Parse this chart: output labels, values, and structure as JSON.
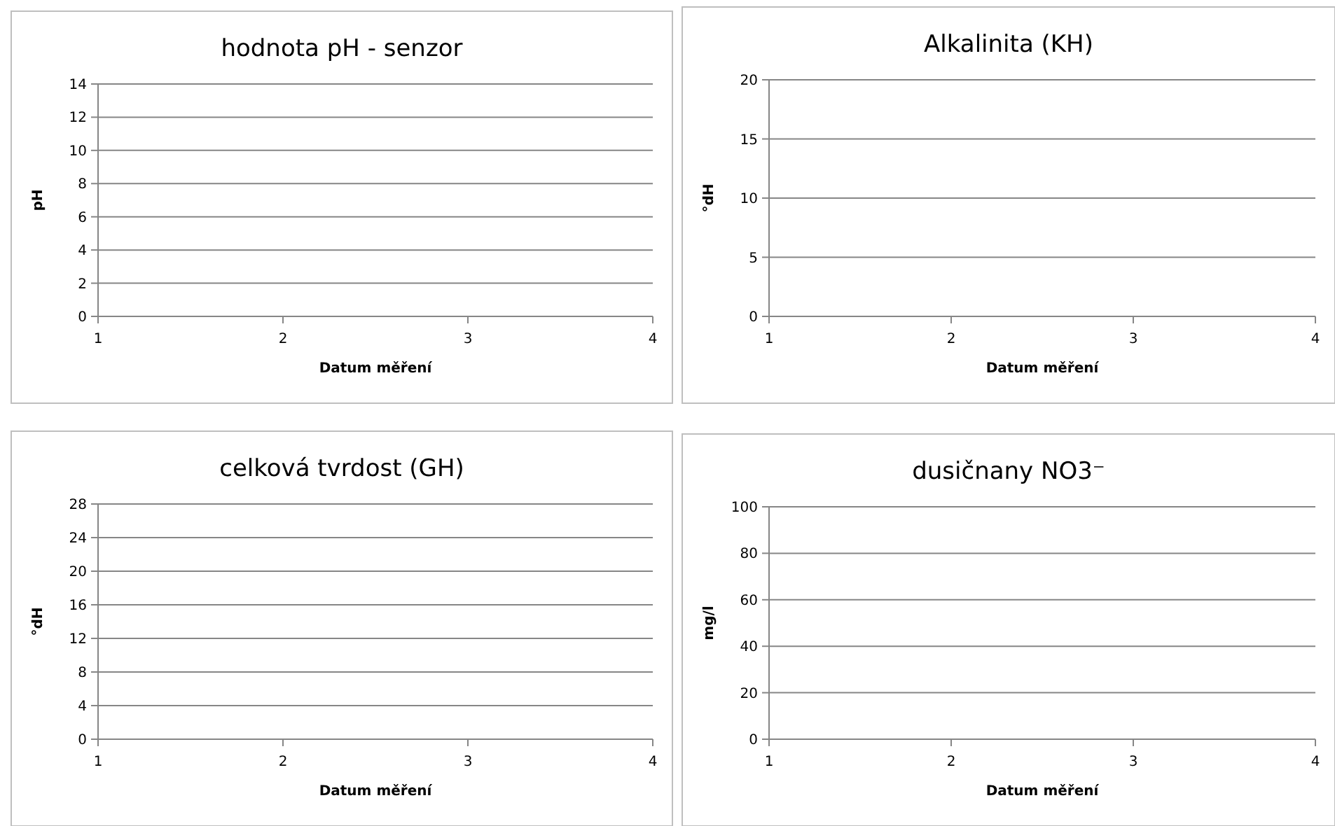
{
  "chart_data": [
    {
      "type": "line",
      "title": "hodnota pH - senzor",
      "xlabel": "Datum měření",
      "ylabel": "pH",
      "xlim": [
        1,
        4
      ],
      "xticks": [
        1,
        2,
        3,
        4
      ],
      "ylim": [
        0,
        14
      ],
      "yticks": [
        0,
        2,
        4,
        6,
        8,
        10,
        12,
        14
      ],
      "grid": "y"
    },
    {
      "type": "line",
      "title": "Alkalinita (KH)",
      "xlabel": "Datum měření",
      "ylabel": "°dH",
      "xlim": [
        1,
        4
      ],
      "xticks": [
        1,
        2,
        3,
        4
      ],
      "ylim": [
        0,
        20
      ],
      "yticks": [
        0,
        5,
        10,
        15,
        20
      ],
      "grid": "y"
    },
    {
      "type": "line",
      "title": "celková tvrdost (GH)",
      "xlabel": "Datum měření",
      "ylabel": "°dH",
      "xlim": [
        1,
        4
      ],
      "xticks": [
        1,
        2,
        3,
        4
      ],
      "ylim": [
        0,
        28
      ],
      "yticks": [
        0,
        4,
        8,
        12,
        16,
        20,
        24,
        28
      ],
      "grid": "y"
    },
    {
      "type": "line",
      "title": "dusičnany NO3⁻",
      "xlabel": "Datum měření",
      "ylabel": "mg/l",
      "xlim": [
        1,
        4
      ],
      "xticks": [
        1,
        2,
        3,
        4
      ],
      "ylim": [
        0,
        100
      ],
      "yticks": [
        0,
        20,
        40,
        60,
        80,
        100
      ],
      "grid": "y"
    }
  ]
}
